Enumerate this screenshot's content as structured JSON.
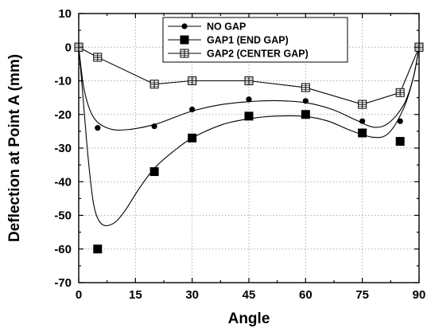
{
  "chart_data": {
    "type": "scatter",
    "xlabel": "Angle",
    "ylabel": "Deflection at Point A (mm)",
    "xlim": [
      0,
      90
    ],
    "ylim": [
      -70,
      10
    ],
    "xticks": [
      0,
      15,
      30,
      45,
      60,
      75,
      90
    ],
    "yticks": [
      10,
      0,
      -10,
      -20,
      -30,
      -40,
      -50,
      -60,
      -70
    ],
    "grid": true,
    "legend_position": "top-right",
    "series": [
      {
        "name": "NO GAP",
        "marker": "circle",
        "points": [
          [
            0,
            0
          ],
          [
            5,
            -24
          ],
          [
            20,
            -23.5
          ],
          [
            30,
            -18.5
          ],
          [
            45,
            -15.5
          ],
          [
            60,
            -16
          ],
          [
            75,
            -22
          ],
          [
            85,
            -22
          ],
          [
            90,
            0
          ]
        ],
        "curve": [
          [
            0,
            0
          ],
          [
            1.5,
            -13
          ],
          [
            4,
            -21
          ],
          [
            8,
            -24.2
          ],
          [
            13,
            -24.5
          ],
          [
            20,
            -23
          ],
          [
            25,
            -21
          ],
          [
            30,
            -19
          ],
          [
            37,
            -17.2
          ],
          [
            45,
            -16.2
          ],
          [
            52,
            -15.9
          ],
          [
            60,
            -16.5
          ],
          [
            67,
            -18.5
          ],
          [
            73,
            -21.5
          ],
          [
            78,
            -23.8
          ],
          [
            82,
            -22.5
          ],
          [
            86,
            -17
          ],
          [
            88.5,
            -9
          ],
          [
            90,
            0
          ]
        ]
      },
      {
        "name": "GAP1 (END GAP)",
        "marker": "square",
        "points": [
          [
            0,
            0
          ],
          [
            5,
            -60
          ],
          [
            20,
            -37
          ],
          [
            30,
            -27
          ],
          [
            45,
            -20.5
          ],
          [
            60,
            -20
          ],
          [
            75,
            -25.5
          ],
          [
            85,
            -28
          ],
          [
            90,
            0
          ]
        ],
        "curve": [
          [
            0,
            0
          ],
          [
            1,
            -13
          ],
          [
            2.5,
            -33
          ],
          [
            4,
            -47
          ],
          [
            6,
            -52.5
          ],
          [
            9,
            -52.5
          ],
          [
            12,
            -49
          ],
          [
            16,
            -42
          ],
          [
            20,
            -36
          ],
          [
            25,
            -31
          ],
          [
            30,
            -27
          ],
          [
            38,
            -23
          ],
          [
            45,
            -21.3
          ],
          [
            52,
            -20.5
          ],
          [
            60,
            -20.6
          ],
          [
            66,
            -22
          ],
          [
            72,
            -24.8
          ],
          [
            78,
            -26.8
          ],
          [
            82,
            -25.5
          ],
          [
            86,
            -18
          ],
          [
            88.5,
            -9
          ],
          [
            90,
            0
          ]
        ]
      },
      {
        "name": "GAP2 (CENTER GAP)",
        "marker": "crossed-square",
        "points": [
          [
            0,
            0
          ],
          [
            5,
            -3
          ],
          [
            20,
            -11
          ],
          [
            30,
            -10
          ],
          [
            45,
            -10
          ],
          [
            60,
            -12
          ],
          [
            75,
            -17
          ],
          [
            85,
            -13.5
          ],
          [
            90,
            0
          ]
        ],
        "line": "straight"
      }
    ]
  }
}
